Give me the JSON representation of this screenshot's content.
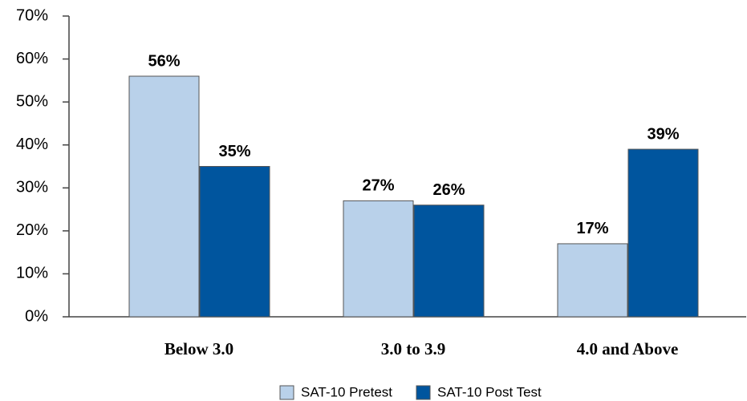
{
  "chart_data": {
    "type": "bar",
    "categories": [
      "Below 3.0",
      "3.0 to 3.9",
      "4.0 and Above"
    ],
    "series": [
      {
        "name": "SAT-10 Pretest",
        "color": "#b9d1ea",
        "values": [
          56,
          27,
          17
        ],
        "value_labels": [
          "56%",
          "27%",
          "17%"
        ]
      },
      {
        "name": "SAT-10 Post Test",
        "color": "#00559e",
        "values": [
          35,
          26,
          39
        ],
        "value_labels": [
          "35%",
          "26%",
          "39%"
        ]
      }
    ],
    "ylim": [
      0,
      70
    ],
    "yticks": [
      {
        "value": 0,
        "label": "0%"
      },
      {
        "value": 10,
        "label": "10%"
      },
      {
        "value": 20,
        "label": "20%"
      },
      {
        "value": 30,
        "label": "30%"
      },
      {
        "value": 40,
        "label": "40%"
      },
      {
        "value": 50,
        "label": "50%"
      },
      {
        "value": 60,
        "label": "60%"
      },
      {
        "value": 70,
        "label": "70%"
      }
    ],
    "legend": "bottom"
  }
}
